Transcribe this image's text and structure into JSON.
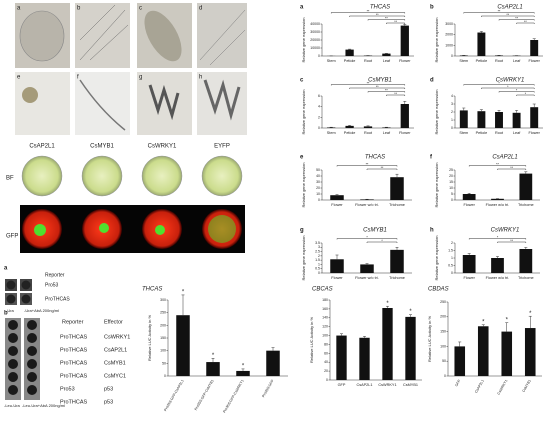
{
  "photo_panel": {
    "letters": [
      "a",
      "b",
      "c",
      "d",
      "e",
      "f",
      "g",
      "h"
    ],
    "constructs": [
      "CsAP2L1",
      "CsMYB1",
      "CsWRKY1",
      "EYFP"
    ],
    "rows": [
      "BF",
      "GFP"
    ]
  },
  "yeast": {
    "a": {
      "label": "a",
      "header": "Reporter",
      "reporters": [
        "Pro53",
        "ProTHCAS"
      ],
      "media": [
        "-Ura",
        "-Ura+AbA 200ng/ml"
      ]
    },
    "b": {
      "label": "b",
      "headers": [
        "Reporter",
        "Effector"
      ],
      "rows": [
        [
          "ProTHCAS",
          "CsWRKY1"
        ],
        [
          "ProTHCAS",
          "CsAP2L1"
        ],
        [
          "ProTHCAS",
          "CsMYB1"
        ],
        [
          "ProTHCAS",
          "CsMYC1"
        ],
        [
          "Pro53",
          "p53"
        ],
        [
          "ProTHCAS",
          "p53"
        ]
      ],
      "media": [
        "-Leu-Ura",
        "-Leu-Ura+AbA 200ng/ml"
      ]
    }
  },
  "chart_data": [
    {
      "type": "bar",
      "label": "a",
      "title": "THCAS",
      "ylabel": "Relative gene expression",
      "categories": [
        "Stem",
        "Petiole",
        "Root",
        "Leaf",
        "Flower"
      ],
      "values": [
        100,
        8000,
        500,
        3000,
        38000
      ],
      "errors": [
        50,
        600,
        100,
        300,
        1500
      ],
      "ylim": [
        0,
        40000
      ],
      "yticks": [
        0,
        10000,
        20000,
        30000,
        40000
      ],
      "color": "#111",
      "brackets": [
        {
          "between": [
            "Leaf",
            "Flower"
          ],
          "label": "**"
        },
        {
          "between": [
            "Root",
            "Flower"
          ],
          "label": "**"
        },
        {
          "between": [
            "Petiole",
            "Flower"
          ],
          "label": "**"
        },
        {
          "between": [
            "Stem",
            "Flower"
          ],
          "label": "**"
        }
      ]
    },
    {
      "type": "bar",
      "label": "b",
      "title": "CsAP2L1",
      "ylabel": "Relative gene expression",
      "categories": [
        "Stem",
        "Petiole",
        "Root",
        "Leaf",
        "Flower"
      ],
      "values": [
        50,
        2200,
        50,
        30,
        1500
      ],
      "errors": [
        10,
        100,
        10,
        10,
        120
      ],
      "ylim": [
        0,
        3000
      ],
      "yticks": [
        0,
        1000,
        2000,
        3000
      ],
      "color": "#111",
      "brackets": [
        {
          "between": [
            "Leaf",
            "Flower"
          ],
          "label": "**"
        },
        {
          "between": [
            "Root",
            "Flower"
          ],
          "label": "**"
        },
        {
          "between": [
            "Petiole",
            "Flower"
          ],
          "label": "**"
        },
        {
          "between": [
            "Stem",
            "Flower"
          ],
          "label": "**"
        }
      ]
    },
    {
      "type": "bar",
      "label": "c",
      "title": "CsMYB1",
      "ylabel": "Relative gene expression",
      "categories": [
        "Stem",
        "Petiole",
        "Root",
        "Leaf",
        "Flower"
      ],
      "values": [
        0.1,
        0.4,
        0.3,
        0.1,
        4.5
      ],
      "errors": [
        0.05,
        0.1,
        0.1,
        0.05,
        0.5
      ],
      "ylim": [
        0,
        6
      ],
      "yticks": [
        0,
        2,
        4,
        6
      ],
      "color": "#111",
      "brackets": [
        {
          "between": [
            "Leaf",
            "Flower"
          ],
          "label": "**"
        },
        {
          "between": [
            "Root",
            "Flower"
          ],
          "label": "**"
        },
        {
          "between": [
            "Petiole",
            "Flower"
          ],
          "label": "**"
        },
        {
          "between": [
            "Stem",
            "Flower"
          ],
          "label": "**"
        }
      ]
    },
    {
      "type": "bar",
      "label": "d",
      "title": "CsWRKY1",
      "ylabel": "Relative gene expression",
      "categories": [
        "Stem",
        "Petiole",
        "Root",
        "Leaf",
        "Flower"
      ],
      "values": [
        2.2,
        2.1,
        2,
        1.9,
        2.6
      ],
      "errors": [
        0.3,
        0.2,
        0.2,
        0.3,
        0.4
      ],
      "ylim": [
        0,
        4
      ],
      "yticks": [
        0,
        1,
        2,
        3,
        4
      ],
      "color": "#111",
      "brackets": [
        {
          "between": [
            "Leaf",
            "Flower"
          ],
          "label": "*"
        },
        {
          "between": [
            "Root",
            "Flower"
          ],
          "label": "*"
        },
        {
          "between": [
            "Petiole",
            "Flower"
          ],
          "label": "*"
        },
        {
          "between": [
            "Stem",
            "Flower"
          ],
          "label": "*"
        }
      ]
    },
    {
      "type": "bar",
      "label": "e",
      "title": "THCAS",
      "ylabel": "Relative gene expression",
      "categories": [
        "Flower",
        "Flower w/o tri.",
        "Trichome"
      ],
      "values": [
        8,
        1,
        38
      ],
      "errors": [
        1,
        0.3,
        5
      ],
      "ylim": [
        0,
        50
      ],
      "yticks": [
        0,
        10,
        20,
        30,
        40,
        50
      ],
      "color": "#111",
      "brackets": [
        {
          "between": [
            "Flower w/o tri.",
            "Trichome"
          ],
          "label": "**"
        },
        {
          "between": [
            "Flower",
            "Trichome"
          ],
          "label": "**"
        }
      ]
    },
    {
      "type": "bar",
      "label": "f",
      "title": "CsAP2L1",
      "ylabel": "Relative gene expression",
      "categories": [
        "Flower",
        "Flower w/o tri.",
        "Trichome"
      ],
      "values": [
        5,
        1,
        22
      ],
      "errors": [
        0.6,
        0.2,
        1.5
      ],
      "ylim": [
        0,
        25
      ],
      "yticks": [
        0,
        5,
        10,
        15,
        20,
        25
      ],
      "color": "#111",
      "brackets": [
        {
          "between": [
            "Flower w/o tri.",
            "Trichome"
          ],
          "label": "**"
        },
        {
          "between": [
            "Flower",
            "Trichome"
          ],
          "label": "**"
        }
      ]
    },
    {
      "type": "bar",
      "label": "g",
      "title": "CsMYB1",
      "ylabel": "Relative gene expression",
      "categories": [
        "Flower",
        "Flower w/o tri.",
        "Trichome"
      ],
      "values": [
        1.6,
        1,
        2.7
      ],
      "errors": [
        0.5,
        0.1,
        0.3
      ],
      "ylim": [
        0,
        3.5
      ],
      "yticks": [
        0,
        0.5,
        1,
        1.5,
        2,
        2.5,
        3,
        3.5
      ],
      "color": "#111",
      "brackets": [
        {
          "between": [
            "Flower w/o tri.",
            "Trichome"
          ],
          "label": "*"
        },
        {
          "between": [
            "Flower",
            "Trichome"
          ],
          "label": "*"
        }
      ]
    },
    {
      "type": "bar",
      "label": "h",
      "title": "CsWRKY1",
      "ylabel": "Relative gene expression",
      "categories": [
        "Flower",
        "Flower w/o tri.",
        "Trichome"
      ],
      "values": [
        1.2,
        1,
        1.6
      ],
      "errors": [
        0.1,
        0.1,
        0.1
      ],
      "ylim": [
        0,
        2
      ],
      "yticks": [
        0,
        0.5,
        1,
        1.5,
        2
      ],
      "color": "#111",
      "brackets": [
        {
          "between": [
            "Flower w/o tri.",
            "Trichome"
          ],
          "label": "**"
        },
        {
          "between": [
            "Flower",
            "Trichome"
          ],
          "label": "*"
        }
      ]
    },
    {
      "type": "bar",
      "title": "THCAS",
      "ylabel": "Relative LUC Activity in %",
      "categories": [
        "Pro35S:GFP-CsAP2L1",
        "Pro35S:GFP-CsMYB1",
        "Pro35S:GFP-CsWRKY1",
        "Pro35S:GFP"
      ],
      "values": [
        240,
        55,
        20,
        100
      ],
      "errors": [
        80,
        15,
        8,
        12
      ],
      "significance": [
        "*",
        "*",
        "*",
        null
      ],
      "ylim": [
        0,
        300
      ],
      "yticks": [
        0,
        50,
        100,
        150,
        200,
        250,
        300
      ],
      "color": "#111",
      "rotated_labels": true
    },
    {
      "type": "bar",
      "title": "CBCAS",
      "ylabel": "Relative LUC Activity in %",
      "categories": [
        "GFP",
        "CsAP2L1",
        "CsWRKY1",
        "CsMYB1"
      ],
      "values": [
        100,
        95,
        162,
        142
      ],
      "errors": [
        4,
        3,
        4,
        5
      ],
      "significance": [
        null,
        null,
        "*",
        "*"
      ],
      "ylim": [
        0,
        180
      ],
      "yticks": [
        0,
        20,
        40,
        60,
        80,
        100,
        120,
        140,
        160,
        180
      ],
      "color": "#111"
    },
    {
      "type": "bar",
      "title": "CBDAS",
      "ylabel": "Relative LUC Activity in %",
      "categories": [
        "GFP",
        "CsAP2L1",
        "CsWRKY1",
        "CsMYB1"
      ],
      "values": [
        100,
        168,
        150,
        162
      ],
      "errors": [
        15,
        5,
        30,
        40
      ],
      "significance": [
        null,
        "*",
        "*",
        "*"
      ],
      "ylim": [
        0,
        250
      ],
      "yticks": [
        0,
        50,
        100,
        150,
        200,
        250
      ],
      "color": "#111",
      "rotated_labels": true
    }
  ]
}
